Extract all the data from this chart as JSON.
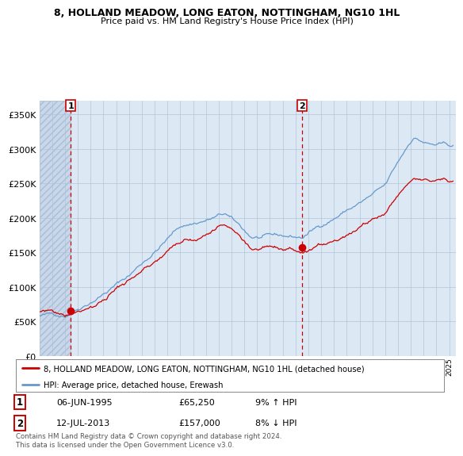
{
  "title1": "8, HOLLAND MEADOW, LONG EATON, NOTTINGHAM, NG10 1HL",
  "title2": "Price paid vs. HM Land Registry's House Price Index (HPI)",
  "legend_line1": "8, HOLLAND MEADOW, LONG EATON, NOTTINGHAM, NG10 1HL (detached house)",
  "legend_line2": "HPI: Average price, detached house, Erewash",
  "sale1_date": "06-JUN-1995",
  "sale1_price": 65250,
  "sale1_hpi": "9% ↑ HPI",
  "sale2_date": "12-JUL-2013",
  "sale2_price": 157000,
  "sale2_hpi": "8% ↓ HPI",
  "footer": "Contains HM Land Registry data © Crown copyright and database right 2024.\nThis data is licensed under the Open Government Licence v3.0.",
  "bg_color": "#dce9f5",
  "red_color": "#cc0000",
  "blue_color": "#6699cc",
  "grid_color": "#b0c4d8",
  "ylim": [
    0,
    370000
  ],
  "yticks": [
    0,
    50000,
    100000,
    150000,
    200000,
    250000,
    300000,
    350000
  ],
  "sale1_year": 1995.44,
  "sale2_year": 2013.53,
  "xmin": 1993,
  "xmax": 2025.5
}
